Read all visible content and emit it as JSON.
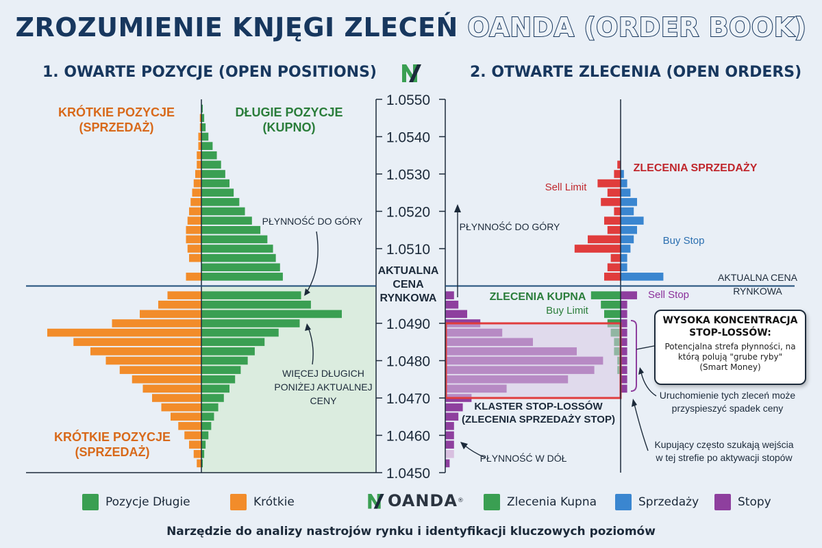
{
  "title": {
    "part1": "ZROZUMIENIE KNJĘGI ZLECEŃ",
    "part2": "OANDA (ORDER BOOK)"
  },
  "left_heading": "1. OWARTE POZYCJE (OPEN POSITIONS)",
  "right_heading": "2. OTWARTE ZLECENIA (OPEN ORDERS)",
  "colors": {
    "green": "#3a9f52",
    "orange": "#f28c2a",
    "red": "#e03c3c",
    "blue": "#3a86d0",
    "purple": "#8e3f9e",
    "navy": "#17375e",
    "green_text": "#2a7d3a",
    "orange_text": "#d8691a",
    "red_text": "#c0272d",
    "blue_text": "#2b6fb0",
    "purple_text": "#8a2f9a"
  },
  "price_axis": {
    "min": 1.045,
    "max": 1.055,
    "ticks": [
      "1.0550",
      "1.0540",
      "1.0530",
      "1.0520",
      "1.0510",
      "1.0490",
      "1.0480",
      "1.0470",
      "1.0460",
      "1.0450"
    ],
    "tick_values": [
      1.055,
      1.054,
      1.053,
      1.052,
      1.051,
      1.049,
      1.048,
      1.047,
      1.046,
      1.045
    ],
    "current_price": 1.05,
    "current_price_label": [
      "AKTUALNA",
      "CENA",
      "RYNKOWA"
    ]
  },
  "left_labels": {
    "short_top": [
      "KRÓTKIE POZYCJE",
      "(SPRZEDAŻ)"
    ],
    "long_top": [
      "DŁUGIE POZYCJE",
      "(KUPNO)"
    ],
    "short_bottom": [
      "KRÓTKIE POZYCJE",
      "(SPRZEDAŻ)"
    ],
    "liq_up": "PŁYNNOŚĆ DO GÓRY",
    "more_longs": [
      "WIĘCEJ DŁUGICH",
      "PONIŻEJ AKTUALNEJ",
      "CENY"
    ]
  },
  "right_labels": {
    "sell_orders": "ZLECENIA SPRZEDAŻY",
    "sell_limit": "Sell Limit",
    "buy_stop": "Buy Stop",
    "liq_up": "PŁYNNOŚĆ DO GÓRY",
    "current_price": [
      "AKTUALNA CENA",
      "RYNKOWA"
    ],
    "buy_orders": "ZLECENIA KUPNA",
    "buy_limit": "Buy Limit",
    "sell_stop": "Sell Stop",
    "cluster": [
      "KLASTER STOP-LOSSÓW",
      "(ZLECENIA SPRZEDAŻY STOP)"
    ],
    "liq_down": "PŁYNNOŚĆ W DÓŁ",
    "trigger_note": [
      "Uruchomienie tych zleceń może",
      "przyspieszyć spadek ceny"
    ],
    "buyers_note": [
      "Kupujący często szukają wejścia",
      "w tej strefie po aktywacji stopów"
    ]
  },
  "callout": {
    "title": [
      "WYSOKA KONCENTRACJA",
      "STOP-LOSSÓW:"
    ],
    "body": [
      "Potencjalna strefa płynności, na",
      "którą polują \"grube ryby\"",
      "(Smart Money)"
    ]
  },
  "legend": [
    {
      "label": "Pozycje Długie",
      "color": "#3a9f52"
    },
    {
      "label": "Krótkie",
      "color": "#f28c2a"
    },
    {
      "label": "Zlecenia Kupna",
      "color": "#3a9f52"
    },
    {
      "label": "Sprzedaży",
      "color": "#3a86d0"
    },
    {
      "label": "Stopy",
      "color": "#8e3f9e"
    }
  ],
  "logo_text": "OANDA",
  "logo_mark": "®",
  "footer": "Narzędzie do analizy nastrojów rynku i identyfikacji kluczowych poziomów",
  "chart_data": [
    {
      "type": "bar",
      "title": "1. OWARTE POZYCJE (OPEN POSITIONS)",
      "orientation": "horizontal-butterfly",
      "price_step": 0.00025,
      "series": [
        {
          "name": "Pozycje Długie",
          "color": "#3a9f52",
          "prices": [
            1.05475,
            1.0545,
            1.05425,
            1.054,
            1.05375,
            1.0535,
            1.05325,
            1.053,
            1.05275,
            1.0525,
            1.05225,
            1.052,
            1.05175,
            1.0515,
            1.05125,
            1.051,
            1.05075,
            1.0505,
            1.05025,
            1.04975,
            1.0495,
            1.04925,
            1.049,
            1.04875,
            1.0485,
            1.04825,
            1.048,
            1.04775,
            1.0475,
            1.04725,
            1.047,
            1.04675,
            1.0465,
            1.04625,
            1.046,
            1.04575,
            1.0455,
            1.04525
          ],
          "values": [
            1,
            2,
            3,
            5,
            8,
            11,
            14,
            17,
            20,
            23,
            27,
            31,
            36,
            42,
            47,
            51,
            53,
            56,
            58,
            71,
            78,
            100,
            70,
            55,
            45,
            38,
            33,
            28,
            24,
            20,
            16,
            12,
            9,
            7,
            5,
            3,
            2,
            1
          ]
        },
        {
          "name": "Krótkie",
          "color": "#f28c2a",
          "prices": [
            1.0545,
            1.05425,
            1.054,
            1.05375,
            1.0535,
            1.05325,
            1.053,
            1.05275,
            1.0525,
            1.05225,
            1.052,
            1.05175,
            1.0515,
            1.05125,
            1.051,
            1.05075,
            1.05025,
            1.04975,
            1.0495,
            1.04925,
            1.049,
            1.04875,
            1.0485,
            1.04825,
            1.048,
            1.04775,
            1.0475,
            1.04725,
            1.047,
            1.04675,
            1.0465,
            1.04625,
            1.046,
            1.04575,
            1.0455,
            1.04525
          ],
          "values": [
            1,
            1,
            2,
            2,
            3,
            3,
            4,
            5,
            6,
            7,
            8,
            9,
            10,
            10,
            9,
            8,
            10,
            22,
            28,
            40,
            58,
            100,
            83,
            72,
            62,
            53,
            45,
            38,
            32,
            26,
            20,
            15,
            11,
            8,
            5,
            3
          ]
        }
      ],
      "annotations": [
        "PŁYNNOŚĆ DO GÓRY",
        "WIĘCEJ DŁUGICH PONIŻEJ AKTUALNEJ CENY"
      ]
    },
    {
      "type": "bar",
      "title": "2. OTWARTE ZLECENIA (OPEN ORDERS)",
      "orientation": "horizontal-butterfly",
      "price_step": 0.00025,
      "series": [
        {
          "name": "Sell Limit",
          "color": "#e03c3c",
          "prices": [
            1.05325,
            1.053,
            1.05275,
            1.0525,
            1.05225,
            1.052,
            1.05175,
            1.0515,
            1.05125,
            1.051,
            1.05075,
            1.0505,
            1.05025
          ],
          "values": [
            1,
            2,
            7,
            4,
            6,
            2,
            5,
            4,
            10,
            14,
            3,
            4,
            5
          ]
        },
        {
          "name": "Buy Stop",
          "color": "#3a86d0",
          "prices": [
            1.053,
            1.05275,
            1.0525,
            1.05225,
            1.052,
            1.05175,
            1.0515,
            1.05125,
            1.051,
            1.05075,
            1.0505,
            1.05025
          ],
          "values": [
            1,
            2,
            3,
            5,
            4,
            7,
            5,
            4,
            3,
            2,
            2,
            13
          ]
        },
        {
          "name": "Zlecenia Kupna",
          "color": "#3a9f52",
          "prices": [
            1.04975,
            1.0495,
            1.04925,
            1.049,
            1.04875,
            1.0485,
            1.04825,
            1.048,
            1.04775
          ],
          "values": [
            9,
            6,
            5,
            4,
            3,
            2,
            2,
            1,
            1
          ]
        },
        {
          "name": "Sell Stop",
          "color": "#8e3f9e",
          "prices": [
            1.04975,
            1.0495,
            1.04925,
            1.049,
            1.04875,
            1.0485,
            1.04825,
            1.048,
            1.04775,
            1.0475,
            1.04725
          ],
          "values": [
            5,
            2,
            2,
            2,
            2,
            2,
            2,
            2,
            2,
            2,
            2
          ]
        },
        {
          "name": "Stopy",
          "color": "#8e3f9e",
          "prices": [
            1.04975,
            1.0495,
            1.04925,
            1.049,
            1.04875,
            1.0485,
            1.04825,
            1.048,
            1.04775,
            1.0475,
            1.04725,
            1.047,
            1.04675,
            1.0465,
            1.04625,
            1.046,
            1.04575,
            1.0455,
            1.04525
          ],
          "values": [
            2,
            3,
            5,
            8,
            13,
            20,
            30,
            36,
            34,
            28,
            14,
            6,
            4,
            3,
            2,
            2,
            2,
            2,
            1
          ]
        }
      ],
      "annotations": [
        "ZLECENIA SPRZEDAŻY",
        "ZLECENIA KUPNA",
        "KLASTER STOP-LOSSÓW (ZLECENIA SPRZEDAŻY STOP)",
        "PŁYNNOŚĆ DO GÓRY",
        "PŁYNNOŚĆ W DÓŁ"
      ]
    }
  ]
}
